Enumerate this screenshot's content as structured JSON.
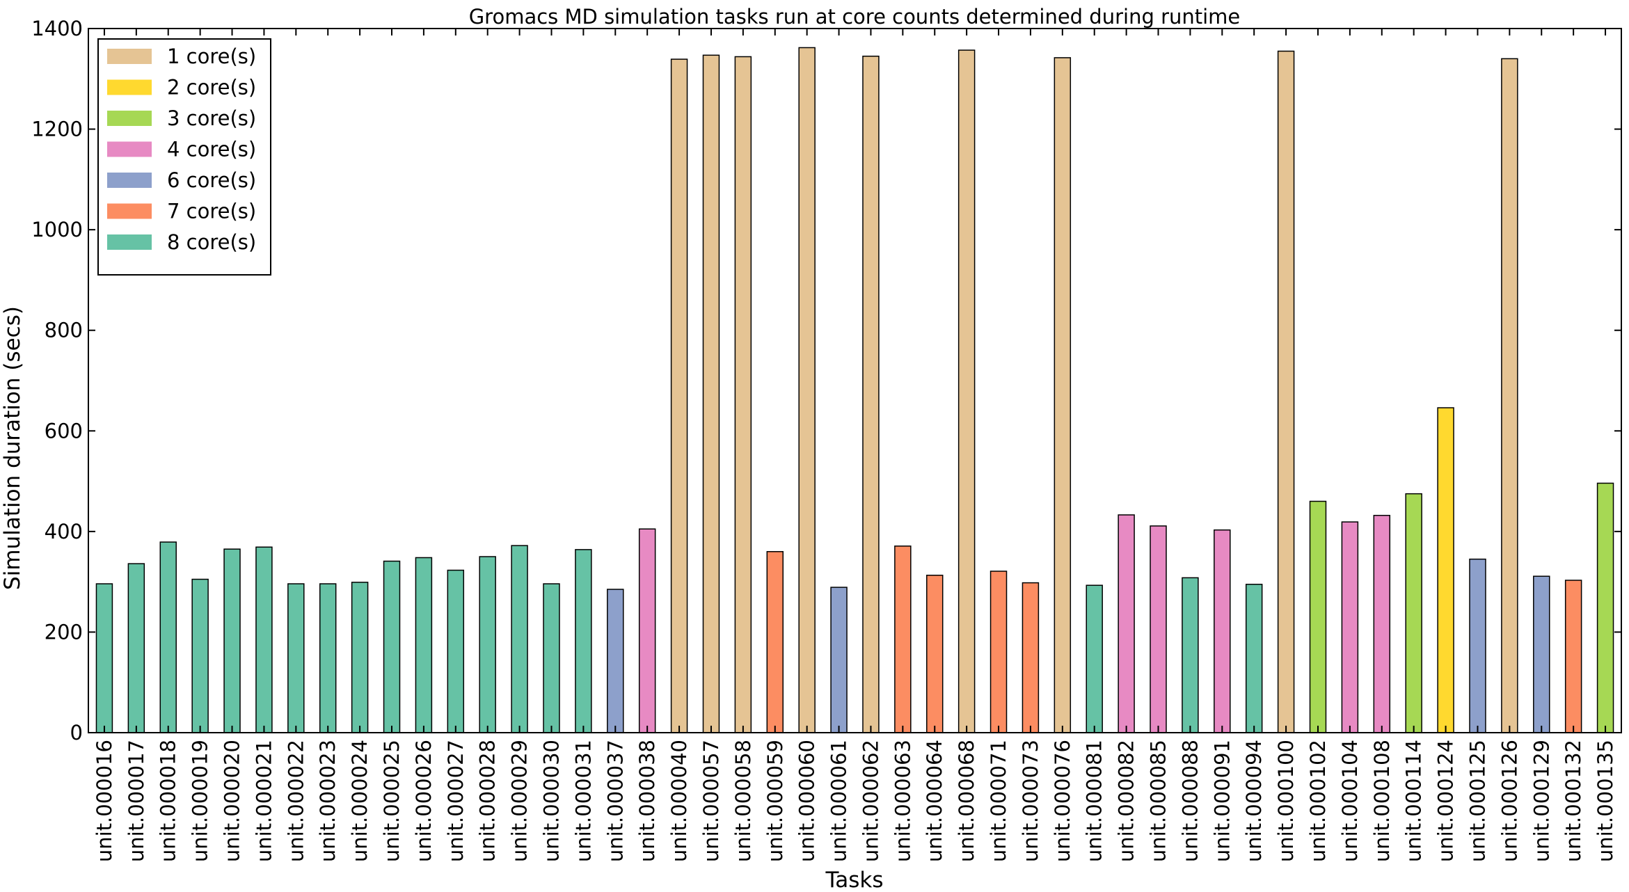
{
  "chart_data": {
    "type": "bar",
    "title": "Gromacs MD simulation tasks run at core counts determined during runtime",
    "xlabel": "Tasks",
    "ylabel": "Simulation duration (secs)",
    "ylim": [
      0,
      1400
    ],
    "yticks": [
      0,
      200,
      400,
      600,
      800,
      1000,
      1200,
      1400
    ],
    "grid": false,
    "legend_position": "top-left",
    "legend": [
      {
        "label": "1 core(s)",
        "cores": 1,
        "color": "#e5c494"
      },
      {
        "label": "2 core(s)",
        "cores": 2,
        "color": "#ffd92f"
      },
      {
        "label": "3 core(s)",
        "cores": 3,
        "color": "#a6d854"
      },
      {
        "label": "4 core(s)",
        "cores": 4,
        "color": "#e78ac3"
      },
      {
        "label": "6 core(s)",
        "cores": 6,
        "color": "#8da0cb"
      },
      {
        "label": "7 core(s)",
        "cores": 7,
        "color": "#fc8d62"
      },
      {
        "label": "8 core(s)",
        "cores": 8,
        "color": "#66c2a5"
      }
    ],
    "categories": [
      "unit.000016",
      "unit.000017",
      "unit.000018",
      "unit.000019",
      "unit.000020",
      "unit.000021",
      "unit.000022",
      "unit.000023",
      "unit.000024",
      "unit.000025",
      "unit.000026",
      "unit.000027",
      "unit.000028",
      "unit.000029",
      "unit.000030",
      "unit.000031",
      "unit.000037",
      "unit.000038",
      "unit.000040",
      "unit.000057",
      "unit.000058",
      "unit.000059",
      "unit.000060",
      "unit.000061",
      "unit.000062",
      "unit.000063",
      "unit.000064",
      "unit.000068",
      "unit.000071",
      "unit.000073",
      "unit.000076",
      "unit.000081",
      "unit.000082",
      "unit.000085",
      "unit.000088",
      "unit.000091",
      "unit.000094",
      "unit.000100",
      "unit.000102",
      "unit.000104",
      "unit.000108",
      "unit.000114",
      "unit.000124",
      "unit.000125",
      "unit.000126",
      "unit.000129",
      "unit.000132",
      "unit.000135"
    ],
    "values": [
      296,
      336,
      379,
      305,
      365,
      369,
      296,
      296,
      299,
      341,
      348,
      323,
      350,
      372,
      296,
      364,
      285,
      405,
      1339,
      1347,
      1344,
      360,
      1362,
      289,
      1345,
      371,
      313,
      1357,
      321,
      298,
      1342,
      293,
      433,
      411,
      308,
      403,
      295,
      1355,
      460,
      419,
      432,
      475,
      646,
      345,
      1340,
      311,
      303,
      496
    ],
    "cores": [
      8,
      8,
      8,
      8,
      8,
      8,
      8,
      8,
      8,
      8,
      8,
      8,
      8,
      8,
      8,
      8,
      6,
      4,
      1,
      1,
      1,
      7,
      1,
      6,
      1,
      7,
      7,
      1,
      7,
      7,
      1,
      8,
      4,
      4,
      8,
      4,
      8,
      1,
      3,
      4,
      4,
      3,
      2,
      6,
      1,
      6,
      7,
      3
    ]
  }
}
